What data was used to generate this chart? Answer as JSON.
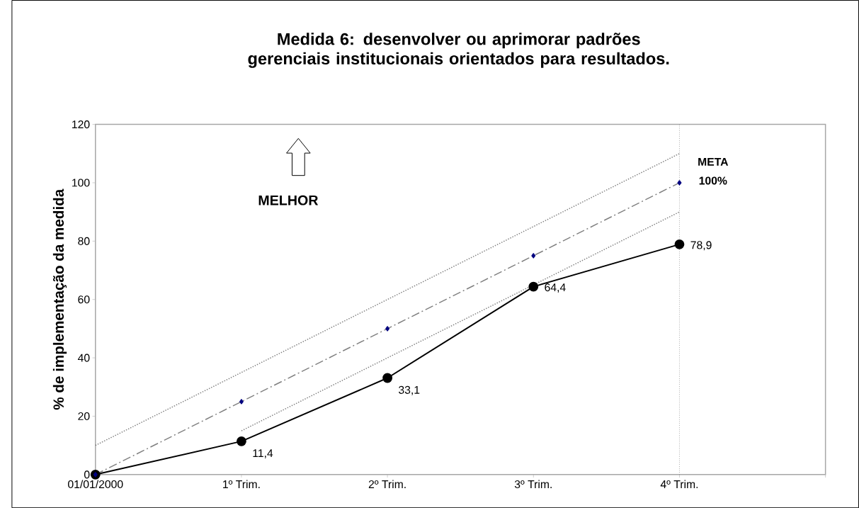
{
  "chart_data": {
    "type": "line",
    "title": "Medida 6:  desenvolver ou aprimorar padrões gerenciais institucionais orientados para resultados.",
    "ylabel": "% de implementação da medida",
    "categories": [
      "01/01/2000",
      "1º Trim.",
      "2º Trim.",
      "3º Trim.",
      "4º Trim.",
      null
    ],
    "ylim": [
      0,
      120
    ],
    "yticks": [
      0,
      20,
      40,
      60,
      80,
      100,
      120
    ],
    "series": [
      {
        "color": "#000000",
        "marker": "circle",
        "line_style": "solid",
        "values": [
          0,
          11.4,
          33.1,
          64.4,
          78.9,
          null
        ],
        "value_labels": [
          null,
          "11,4",
          "33,1",
          "64,4",
          "78,9",
          null
        ]
      },
      {
        "color": "#808080",
        "marker": "none",
        "line_style": "dashdot",
        "values": [
          0,
          25,
          50,
          75,
          100,
          null
        ]
      },
      {
        "type": "scatter",
        "color": "#000080",
        "marker": "diamond",
        "values": [
          0,
          25,
          50,
          75,
          100,
          null
        ]
      },
      {
        "color": "#808080",
        "marker": "none",
        "line_style": "dotted",
        "values": [
          10,
          35,
          60,
          85,
          110,
          null
        ]
      },
      {
        "color": "#808080",
        "marker": "none",
        "line_style": "dotted",
        "values": [
          null,
          15,
          40,
          65,
          90,
          null
        ]
      }
    ],
    "ref_lines": [
      {
        "axis": "x",
        "value": "4º Trim.",
        "color": "#808080",
        "line_style": "dotted"
      }
    ],
    "annotations": [
      "MELHOR",
      {
        "text": "META",
        "x": "4º Trim.",
        "y": 100
      },
      {
        "text": "100%",
        "x": "4º Trim.",
        "y": 100
      }
    ]
  }
}
